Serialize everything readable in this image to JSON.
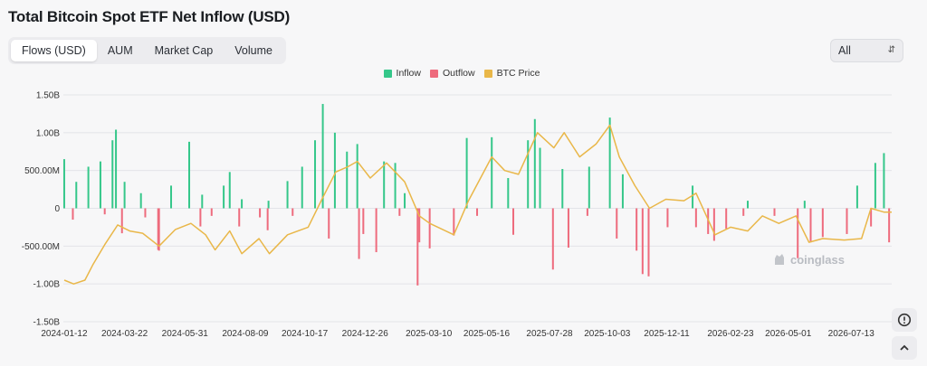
{
  "header": {
    "title": "Total Bitcoin Spot ETF Net Inflow (USD)"
  },
  "tabs": [
    {
      "label": "Flows (USD)",
      "active": true
    },
    {
      "label": "AUM",
      "active": false
    },
    {
      "label": "Market Cap",
      "active": false
    },
    {
      "label": "Volume",
      "active": false
    }
  ],
  "range_select": {
    "value": "All"
  },
  "watermark": "coinglass",
  "colors": {
    "inflow": "#35c78a",
    "outflow": "#ee6b7d",
    "btc_price": "#e9b749",
    "grid": "#e3e4e8",
    "text": "#333333"
  },
  "icons": {
    "alert": "alert-clock-icon",
    "up": "chevron-up-icon",
    "select": "chevron-updown-icon"
  },
  "chart_data": {
    "type": "bar",
    "title": "Total Bitcoin Spot ETF Net Inflow (USD)",
    "xlabel": "",
    "ylabel": "",
    "legend": {
      "position": "top-center",
      "entries": [
        "Inflow",
        "Outflow",
        "BTC Price"
      ]
    },
    "grid": {
      "y": true,
      "x": false
    },
    "ylim": [
      -1.5,
      1.5
    ],
    "y_ticks": [
      -1.5,
      -1.0,
      -0.5,
      0,
      0.5,
      1.0,
      1.5
    ],
    "y_tick_labels": [
      "-1.50B",
      "-1.00B",
      "-500.00M",
      "0",
      "500.00M",
      "1.00B",
      "1.50B"
    ],
    "x_tick_labels": [
      "2024-01-12",
      "2024-03-22",
      "2024-05-31",
      "2024-08-09",
      "2024-10-17",
      "2024-12-26",
      "2025-03-10",
      "2025-05-16",
      "2025-07-28",
      "2025-10-03",
      "2025-12-11",
      "2026-02-23",
      "2026-05-01",
      "2026-07-13"
    ],
    "x_range": [
      "2024-01-11",
      "2026-08-29"
    ],
    "series": [
      {
        "name": "Inflow",
        "type": "bar",
        "color": "#35c78a",
        "points": [
          [
            "2024-01-12",
            0.65
          ],
          [
            "2024-01-26",
            0.35
          ],
          [
            "2024-02-09",
            0.55
          ],
          [
            "2024-02-23",
            0.62
          ],
          [
            "2024-03-08",
            0.9
          ],
          [
            "2024-03-12",
            1.04
          ],
          [
            "2024-03-22",
            0.35
          ],
          [
            "2024-04-10",
            0.2
          ],
          [
            "2024-05-15",
            0.3
          ],
          [
            "2024-06-05",
            0.88
          ],
          [
            "2024-06-20",
            0.18
          ],
          [
            "2024-07-15",
            0.3
          ],
          [
            "2024-07-22",
            0.48
          ],
          [
            "2024-08-05",
            0.12
          ],
          [
            "2024-09-05",
            0.1
          ],
          [
            "2024-09-27",
            0.36
          ],
          [
            "2024-10-14",
            0.55
          ],
          [
            "2024-10-29",
            0.9
          ],
          [
            "2024-11-07",
            1.38
          ],
          [
            "2024-11-21",
            1.0
          ],
          [
            "2024-12-05",
            0.75
          ],
          [
            "2024-12-17",
            0.85
          ],
          [
            "2025-01-17",
            0.62
          ],
          [
            "2025-01-30",
            0.6
          ],
          [
            "2025-02-10",
            0.2
          ],
          [
            "2025-04-23",
            0.93
          ],
          [
            "2025-05-22",
            0.94
          ],
          [
            "2025-06-10",
            0.4
          ],
          [
            "2025-07-03",
            0.9
          ],
          [
            "2025-07-11",
            1.18
          ],
          [
            "2025-07-17",
            0.8
          ],
          [
            "2025-08-12",
            0.52
          ],
          [
            "2025-09-12",
            0.55
          ],
          [
            "2025-10-06",
            1.2
          ],
          [
            "2025-10-21",
            0.45
          ],
          [
            "2026-01-10",
            0.3
          ],
          [
            "2026-03-15",
            0.1
          ],
          [
            "2026-05-20",
            0.1
          ],
          [
            "2026-07-20",
            0.3
          ],
          [
            "2026-08-10",
            0.6
          ],
          [
            "2026-08-20",
            0.73
          ]
        ]
      },
      {
        "name": "Outflow",
        "type": "bar",
        "color": "#ee6b7d",
        "points": [
          [
            "2024-01-22",
            -0.15
          ],
          [
            "2024-02-28",
            -0.08
          ],
          [
            "2024-03-19",
            -0.33
          ],
          [
            "2024-04-15",
            -0.12
          ],
          [
            "2024-04-30",
            -0.55
          ],
          [
            "2024-05-01",
            -0.56
          ],
          [
            "2024-06-18",
            -0.24
          ],
          [
            "2024-07-01",
            -0.1
          ],
          [
            "2024-08-02",
            -0.24
          ],
          [
            "2024-08-26",
            -0.12
          ],
          [
            "2024-09-04",
            -0.29
          ],
          [
            "2024-10-03",
            -0.1
          ],
          [
            "2024-11-14",
            -0.4
          ],
          [
            "2024-12-19",
            -0.67
          ],
          [
            "2024-12-24",
            -0.34
          ],
          [
            "2025-01-08",
            -0.58
          ],
          [
            "2025-02-04",
            -0.1
          ],
          [
            "2025-02-25",
            -1.02
          ],
          [
            "2025-02-27",
            -0.45
          ],
          [
            "2025-03-11",
            -0.53
          ],
          [
            "2025-04-08",
            -0.36
          ],
          [
            "2025-05-05",
            -0.1
          ],
          [
            "2025-06-16",
            -0.35
          ],
          [
            "2025-08-01",
            -0.81
          ],
          [
            "2025-08-19",
            -0.52
          ],
          [
            "2025-09-10",
            -0.1
          ],
          [
            "2025-10-14",
            -0.4
          ],
          [
            "2025-11-06",
            -0.56
          ],
          [
            "2025-11-13",
            -0.87
          ],
          [
            "2025-11-20",
            -0.9
          ],
          [
            "2025-12-12",
            -0.25
          ],
          [
            "2026-01-14",
            -0.25
          ],
          [
            "2026-01-28",
            -0.34
          ],
          [
            "2026-02-04",
            -0.43
          ],
          [
            "2026-02-18",
            -0.27
          ],
          [
            "2026-03-10",
            -0.1
          ],
          [
            "2026-04-15",
            -0.1
          ],
          [
            "2026-05-12",
            -0.66
          ],
          [
            "2026-05-27",
            -0.45
          ],
          [
            "2026-06-10",
            -0.38
          ],
          [
            "2026-07-08",
            -0.34
          ],
          [
            "2026-08-05",
            -0.24
          ],
          [
            "2026-08-26",
            -0.45
          ]
        ]
      },
      {
        "name": "BTC Price",
        "type": "line",
        "color": "#e9b749",
        "axis": "secondary",
        "points": [
          [
            "2024-01-12",
            -0.95
          ],
          [
            "2024-01-23",
            -1.0
          ],
          [
            "2024-02-05",
            -0.95
          ],
          [
            "2024-02-14",
            -0.75
          ],
          [
            "2024-02-28",
            -0.48
          ],
          [
            "2024-03-14",
            -0.22
          ],
          [
            "2024-03-28",
            -0.3
          ],
          [
            "2024-04-12",
            -0.33
          ],
          [
            "2024-05-01",
            -0.5
          ],
          [
            "2024-05-20",
            -0.28
          ],
          [
            "2024-06-07",
            -0.2
          ],
          [
            "2024-06-24",
            -0.35
          ],
          [
            "2024-07-05",
            -0.55
          ],
          [
            "2024-07-22",
            -0.3
          ],
          [
            "2024-08-05",
            -0.6
          ],
          [
            "2024-08-25",
            -0.4
          ],
          [
            "2024-09-06",
            -0.6
          ],
          [
            "2024-09-27",
            -0.35
          ],
          [
            "2024-10-21",
            -0.25
          ],
          [
            "2024-11-06",
            0.12
          ],
          [
            "2024-11-22",
            0.48
          ],
          [
            "2024-12-06",
            0.55
          ],
          [
            "2024-12-17",
            0.62
          ],
          [
            "2025-01-01",
            0.4
          ],
          [
            "2025-01-20",
            0.6
          ],
          [
            "2025-02-10",
            0.35
          ],
          [
            "2025-02-27",
            -0.1
          ],
          [
            "2025-03-11",
            -0.2
          ],
          [
            "2025-04-08",
            -0.35
          ],
          [
            "2025-04-25",
            0.1
          ],
          [
            "2025-05-22",
            0.68
          ],
          [
            "2025-06-06",
            0.5
          ],
          [
            "2025-06-22",
            0.45
          ],
          [
            "2025-07-14",
            1.0
          ],
          [
            "2025-08-02",
            0.8
          ],
          [
            "2025-08-14",
            1.0
          ],
          [
            "2025-09-01",
            0.68
          ],
          [
            "2025-09-20",
            0.85
          ],
          [
            "2025-10-06",
            1.1
          ],
          [
            "2025-10-17",
            0.68
          ],
          [
            "2025-11-04",
            0.3
          ],
          [
            "2025-11-21",
            0.0
          ],
          [
            "2025-12-10",
            0.12
          ],
          [
            "2025-12-31",
            0.1
          ],
          [
            "2026-01-14",
            0.2
          ],
          [
            "2026-02-05",
            -0.35
          ],
          [
            "2026-02-23",
            -0.25
          ],
          [
            "2026-03-15",
            -0.3
          ],
          [
            "2026-04-01",
            -0.1
          ],
          [
            "2026-04-20",
            -0.2
          ],
          [
            "2026-05-10",
            -0.1
          ],
          [
            "2026-05-25",
            -0.45
          ],
          [
            "2026-06-10",
            -0.4
          ],
          [
            "2026-07-05",
            -0.42
          ],
          [
            "2026-07-25",
            -0.4
          ],
          [
            "2026-08-05",
            0.0
          ],
          [
            "2026-08-20",
            -0.05
          ],
          [
            "2026-08-29",
            -0.05
          ]
        ]
      }
    ]
  }
}
